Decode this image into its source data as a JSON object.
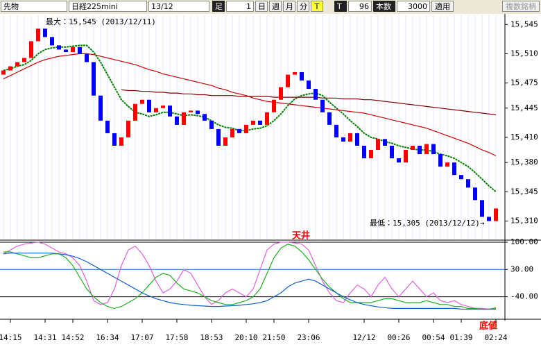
{
  "toolbar": {
    "symbol_type": "先物",
    "symbol": "日経225mini",
    "contract": "13/12",
    "bar_label": "足",
    "bar_count": "1",
    "periods": [
      "日",
      "週",
      "月",
      "分"
    ],
    "t1": "T",
    "t2": "T",
    "count": "96",
    "count_label": "本数",
    "bars": "3000",
    "apply": "適用",
    "multi": "複数銘柄"
  },
  "chart_data": [
    {
      "type": "candlestick",
      "open": [
        15485,
        15490,
        15495,
        15500,
        15505,
        15525,
        15540,
        15530,
        15520,
        15515,
        15512,
        15518,
        15510,
        15500,
        15460,
        15430,
        15415,
        15400,
        15410,
        15430,
        15450,
        15455,
        15440,
        15445,
        15448,
        15435,
        15425,
        15440,
        15442,
        15438,
        15430,
        15420,
        15400,
        15410,
        15420,
        15415,
        15425,
        15430,
        15425,
        15440,
        15455,
        15470,
        15485,
        15488,
        15478,
        15468,
        15455,
        15440,
        15425,
        15410,
        15405,
        15415,
        15400,
        15385,
        15395,
        15408,
        15400,
        15385,
        15380,
        15395,
        15400,
        15390,
        15402,
        15390,
        15375,
        15380,
        15365,
        15360,
        15350,
        15335,
        15315,
        15310
      ],
      "close": [
        15490,
        15495,
        15500,
        15505,
        15525,
        15540,
        15530,
        15520,
        15515,
        15512,
        15518,
        15510,
        15500,
        15460,
        15430,
        15415,
        15400,
        15410,
        15430,
        15450,
        15455,
        15440,
        15445,
        15448,
        15435,
        15425,
        15440,
        15442,
        15438,
        15430,
        15420,
        15400,
        15410,
        15420,
        15415,
        15425,
        15430,
        15425,
        15440,
        15455,
        15470,
        15485,
        15488,
        15478,
        15468,
        15455,
        15440,
        15425,
        15410,
        15405,
        15415,
        15400,
        15385,
        15395,
        15408,
        15400,
        15385,
        15380,
        15395,
        15400,
        15390,
        15402,
        15390,
        15375,
        15380,
        15365,
        15360,
        15350,
        15335,
        15315,
        15310,
        15325
      ],
      "up_color": "#ff0000",
      "down_color": "#0000ff",
      "series": [
        {
          "color": "#008000",
          "values": [
            15490,
            15492,
            15495,
            15497,
            15502,
            15510,
            15515,
            15517,
            15518,
            15518,
            15519,
            15520,
            15520,
            15512,
            15500,
            15485,
            15470,
            15455,
            15447,
            15440,
            15438,
            15435,
            15437,
            15440,
            15440,
            15438,
            15436,
            15437,
            15436,
            15434,
            15430,
            15425,
            15422,
            15421,
            15418,
            15418,
            15420,
            15421,
            15424,
            15430,
            15438,
            15448,
            15456,
            15460,
            15462,
            15463,
            15460,
            15452,
            15445,
            15438,
            15430,
            15423,
            15415,
            15410,
            15408,
            15405,
            15403,
            15400,
            15398,
            15396,
            15395,
            15395,
            15393,
            15390,
            15388,
            15385,
            15380,
            15375,
            15368,
            15360,
            15352,
            15345
          ]
        },
        {
          "color": "#cc0000",
          "values": [
            15480,
            15484,
            15488,
            15492,
            15496,
            15500,
            15503,
            15505,
            15507,
            15508,
            15509,
            15510,
            15510,
            15509,
            15507,
            15505,
            15503,
            15501,
            15499,
            15497,
            15494,
            15491,
            15489,
            15486,
            15484,
            15482,
            15480,
            15478,
            15476,
            15474,
            15472,
            15469,
            15467,
            15464,
            15462,
            15460,
            15457,
            15455,
            15453,
            15452,
            15451,
            15450,
            15449,
            15448,
            15447,
            15446,
            15445,
            15444,
            15443,
            15442,
            15441,
            15440,
            15439,
            15437,
            15435,
            15433,
            15431,
            15429,
            15427,
            15425,
            15423,
            15421,
            15418,
            15415,
            15412,
            15409,
            15406,
            15403,
            15399,
            15395,
            15392,
            15388
          ]
        },
        {
          "color": "#800000",
          "values": [
            null,
            null,
            null,
            null,
            null,
            null,
            null,
            null,
            null,
            null,
            null,
            null,
            null,
            null,
            null,
            null,
            null,
            15467,
            15466,
            15466,
            15465,
            15465,
            15464,
            15464,
            15463,
            15463,
            15462,
            15462,
            15461,
            15461,
            15460,
            15460,
            15460,
            15460,
            15459,
            15459,
            15459,
            15459,
            15459,
            15458,
            15458,
            15458,
            15458,
            15458,
            15458,
            15458,
            15457,
            15457,
            15457,
            15456,
            15456,
            15456,
            15455,
            15455,
            15454,
            15453,
            15452,
            15451,
            15450,
            15449,
            15448,
            15447,
            15446,
            15445,
            15444,
            15443,
            15442,
            15441,
            15440,
            15439,
            15438,
            15437
          ]
        }
      ],
      "ylim": [
        15288,
        15556
      ],
      "yticks": [
        {
          "value": 15545,
          "label": "15,545"
        },
        {
          "value": 15510,
          "label": "15,510"
        },
        {
          "value": 15475,
          "label": "15,475"
        },
        {
          "value": 15445,
          "label": "15,445"
        },
        {
          "value": 15410,
          "label": "15,410"
        },
        {
          "value": 15380,
          "label": "15,380"
        },
        {
          "value": 15345,
          "label": "15,345"
        },
        {
          "value": 15310,
          "label": "15,310"
        }
      ],
      "annotations": [
        "最大：15,545 (2013/12/11)",
        "最低：15,305 (2013/12/12)→"
      ]
    },
    {
      "type": "line",
      "categories": [
        null,
        "14:15",
        null,
        null,
        null,
        null,
        "14:31",
        null,
        null,
        null,
        "14:52",
        null,
        null,
        null,
        null,
        "16:34",
        null,
        null,
        null,
        null,
        "17:07",
        null,
        null,
        null,
        null,
        "17:58",
        null,
        null,
        null,
        null,
        "18:53",
        null,
        null,
        null,
        null,
        "20:10",
        null,
        null,
        null,
        "21:50",
        null,
        null,
        null,
        null,
        "23:06",
        null,
        null,
        null,
        null,
        null,
        null,
        null,
        "12/12",
        null,
        null,
        null,
        null,
        "00:26",
        null,
        null,
        null,
        null,
        "00:54",
        null,
        null,
        null,
        "01:39",
        null,
        null,
        null,
        null,
        "02:24"
      ],
      "series": [
        {
          "color": "#e060e0",
          "values": [
            70,
            80,
            90,
            95,
            98,
            100,
            95,
            85,
            75,
            70,
            60,
            40,
            0,
            -50,
            -60,
            -55,
            -20,
            40,
            80,
            90,
            70,
            40,
            0,
            -30,
            -20,
            0,
            30,
            20,
            -10,
            -40,
            -60,
            -50,
            -30,
            -20,
            -30,
            -40,
            -20,
            30,
            80,
            95,
            100,
            100,
            98,
            95,
            80,
            40,
            0,
            -30,
            -50,
            -55,
            -30,
            -10,
            -20,
            -40,
            -10,
            10,
            -20,
            -40,
            -20,
            0,
            -20,
            -40,
            -30,
            -50,
            -55,
            -50,
            -60,
            -65,
            -70,
            -70,
            -72,
            -68
          ]
        },
        {
          "color": "#20b020",
          "values": [
            75,
            75,
            70,
            65,
            60,
            60,
            65,
            70,
            70,
            60,
            40,
            10,
            -20,
            -40,
            -55,
            -65,
            -70,
            -65,
            -55,
            -45,
            -30,
            -10,
            10,
            20,
            15,
            -5,
            -20,
            -25,
            -30,
            -40,
            -50,
            -55,
            -60,
            -60,
            -55,
            -50,
            -40,
            -20,
            20,
            60,
            85,
            95,
            90,
            75,
            55,
            30,
            5,
            -15,
            -30,
            -45,
            -55,
            -55,
            -55,
            -55,
            -50,
            -45,
            -45,
            -50,
            -55,
            -55,
            -55,
            -50,
            -55,
            -60,
            -60,
            -65,
            -65,
            -70,
            -70,
            -72,
            -72,
            -70
          ]
        },
        {
          "color": "#1060d0",
          "values": [
            70,
            72,
            72,
            72,
            72,
            72,
            72,
            72,
            70,
            68,
            64,
            58,
            50,
            40,
            30,
            20,
            10,
            0,
            -10,
            -20,
            -30,
            -38,
            -45,
            -50,
            -55,
            -58,
            -60,
            -62,
            -63,
            -64,
            -65,
            -65,
            -64,
            -63,
            -62,
            -60,
            -58,
            -55,
            -50,
            -40,
            -30,
            -15,
            -5,
            0,
            5,
            0,
            -10,
            -20,
            -30,
            -40,
            -48,
            -55,
            -60,
            -63,
            -66,
            -68,
            -70,
            -70,
            -70,
            -70,
            -70,
            -70,
            -70,
            -70,
            -70,
            -70,
            -72,
            -72,
            -72,
            -72,
            -72,
            -72
          ]
        }
      ],
      "ylim": [
        -96,
        100
      ],
      "yticks": [
        {
          "value": 100,
          "label": "100.00"
        },
        {
          "value": 30,
          "label": "30.00"
        },
        {
          "value": -40,
          "label": "-40.00"
        }
      ],
      "annotations": [
        "天井",
        "底値"
      ]
    }
  ]
}
